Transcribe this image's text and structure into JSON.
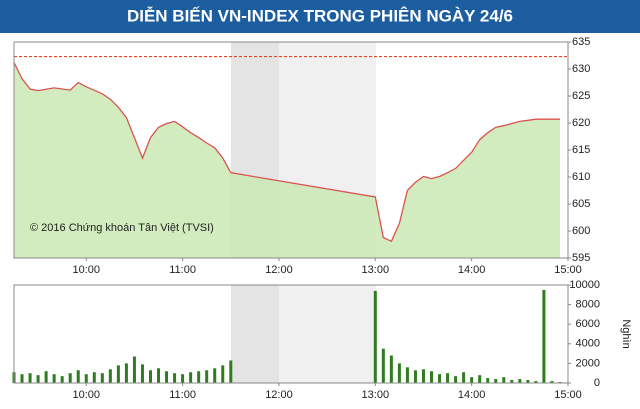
{
  "chart_data": [
    {
      "type": "line",
      "title": "DIỄN BIẾN VN-INDEX TRONG PHIÊN NGÀY 24/6",
      "annotation": "© 2016 Chứng khoán Tân Việt (TVSI)",
      "x": [
        555,
        560,
        565,
        570,
        580,
        590,
        595,
        600,
        610,
        615,
        620,
        625,
        630,
        635,
        640,
        645,
        650,
        655,
        660,
        665,
        670,
        675,
        680,
        685,
        690,
        780,
        785,
        790,
        795,
        800,
        805,
        810,
        815,
        820,
        825,
        830,
        835,
        840,
        845,
        850,
        855,
        860,
        865,
        870,
        875,
        880,
        885,
        890,
        895
      ],
      "values": [
        631.2,
        628.2,
        626.3,
        626,
        626.5,
        626.1,
        627.5,
        626.7,
        625.4,
        624.4,
        622.9,
        621,
        617.3,
        613.5,
        617.3,
        619.2,
        619.9,
        620.3,
        619.3,
        618.2,
        617.3,
        616.3,
        615.4,
        613.5,
        610.8,
        606.3,
        598.8,
        598.1,
        601.4,
        607.5,
        609,
        610.1,
        609.7,
        610.1,
        610.8,
        611.6,
        613.1,
        614.6,
        616.9,
        618.2,
        619.2,
        619.5,
        619.9,
        620.3,
        620.5,
        620.7,
        620.7,
        620.7,
        620.7
      ],
      "color": "#d9534f",
      "fill_color": "#cbe9b4",
      "reference_line": 632.3,
      "reference_color": "#e8431c",
      "xlim": [
        555,
        900
      ],
      "xticks": [
        {
          "value": 600,
          "label": "10:00"
        },
        {
          "value": 660,
          "label": "11:00"
        },
        {
          "value": 720,
          "label": "12:00"
        },
        {
          "value": 780,
          "label": "13:00"
        },
        {
          "value": 840,
          "label": "14:00"
        },
        {
          "value": 900,
          "label": "15:00"
        }
      ],
      "ylim": [
        595,
        635
      ],
      "yticks": [
        595,
        600,
        605,
        610,
        615,
        620,
        625,
        630,
        635
      ]
    },
    {
      "type": "bar",
      "y_label": "Nghìn",
      "x": [
        555,
        560,
        565,
        570,
        575,
        580,
        585,
        590,
        595,
        600,
        605,
        610,
        615,
        620,
        625,
        630,
        635,
        640,
        645,
        650,
        655,
        660,
        665,
        670,
        675,
        680,
        685,
        690,
        780,
        785,
        790,
        795,
        800,
        805,
        810,
        815,
        820,
        825,
        830,
        835,
        840,
        845,
        850,
        855,
        860,
        865,
        870,
        875,
        880,
        885,
        890,
        895
      ],
      "values": [
        1100,
        900,
        1000,
        800,
        1200,
        900,
        700,
        1000,
        1300,
        900,
        1100,
        1000,
        1400,
        1800,
        2000,
        2700,
        1900,
        1300,
        1500,
        1200,
        1000,
        900,
        1100,
        1200,
        1300,
        1500,
        1800,
        2300,
        9400,
        3500,
        2800,
        2000,
        1600,
        1300,
        1400,
        1200,
        900,
        1000,
        700,
        1100,
        600,
        800,
        500,
        400,
        600,
        300,
        400,
        300,
        200,
        9500,
        200,
        100
      ],
      "color": "#2e7d1e",
      "xlim": [
        555,
        900
      ],
      "xticks": [
        {
          "value": 600,
          "label": "10:00"
        },
        {
          "value": 660,
          "label": "11:00"
        },
        {
          "value": 720,
          "label": "12:00"
        },
        {
          "value": 780,
          "label": "13:00"
        },
        {
          "value": 840,
          "label": "14:00"
        },
        {
          "value": 900,
          "label": "15:00"
        }
      ],
      "ylim": [
        0,
        10000
      ],
      "yticks": [
        0,
        2000,
        4000,
        6000,
        8000,
        10000
      ]
    }
  ]
}
